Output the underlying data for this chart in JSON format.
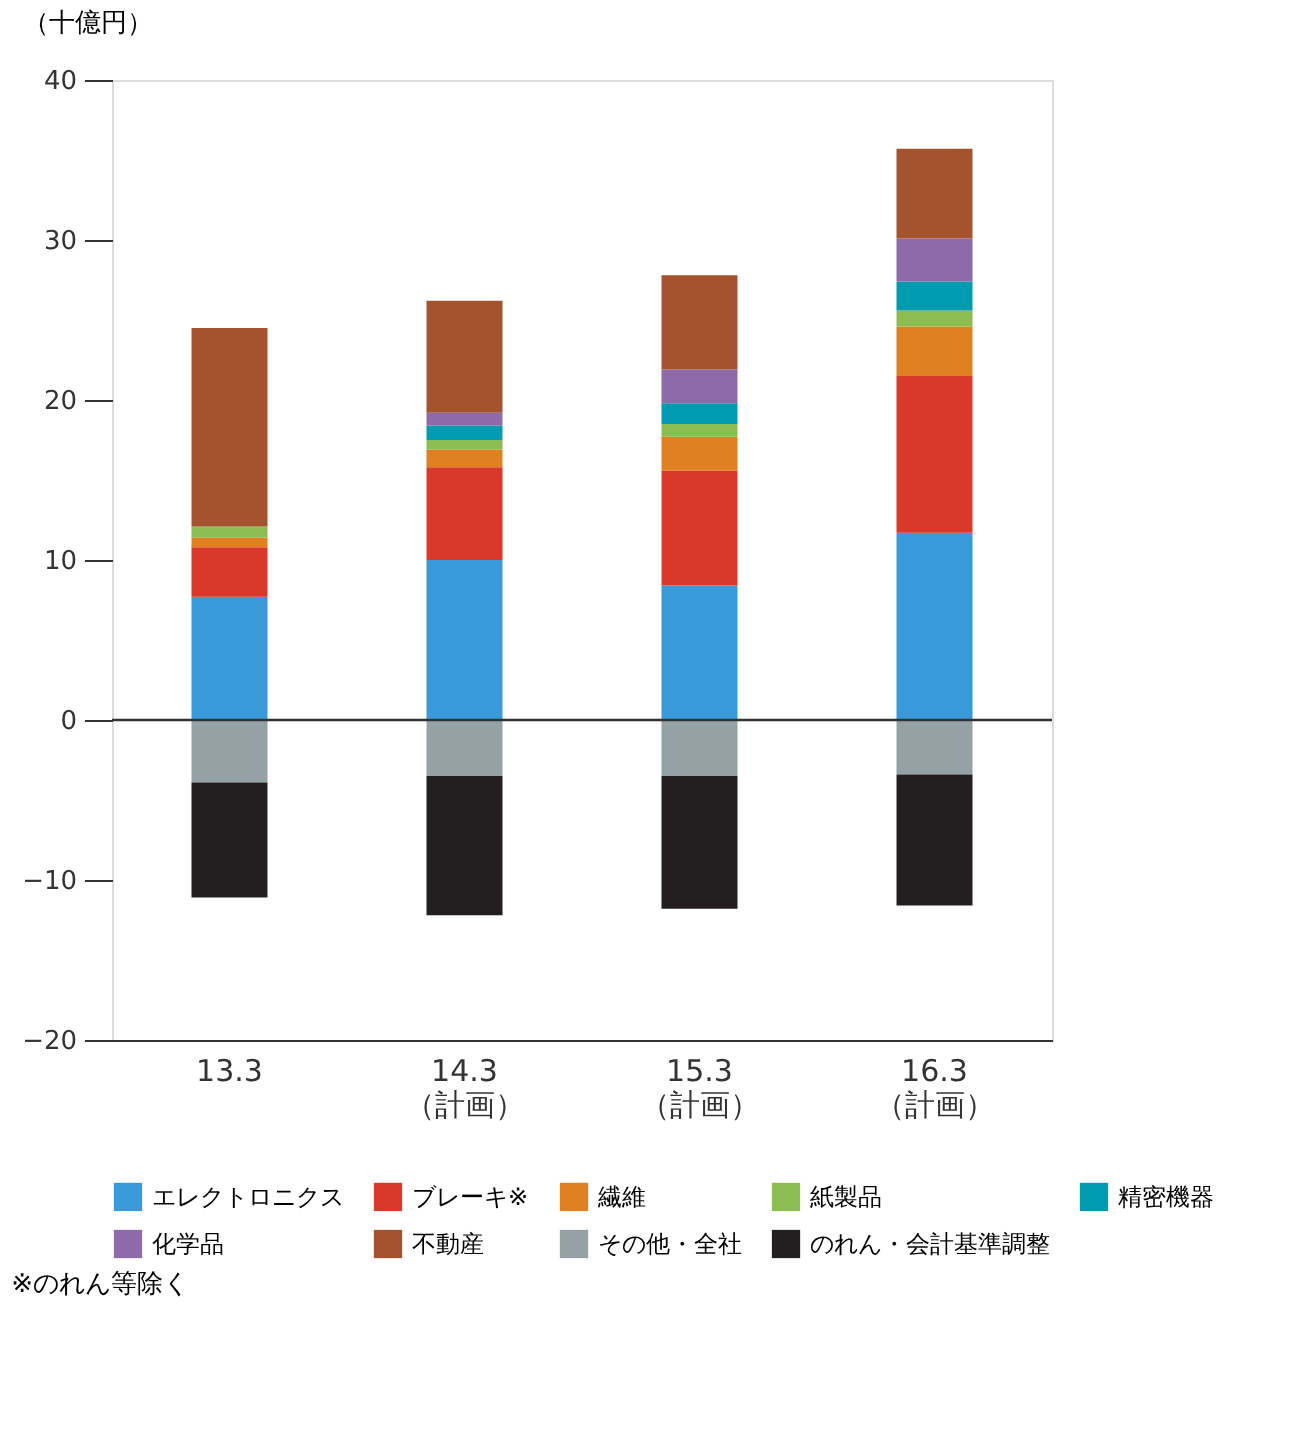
{
  "chart_data": {
    "type": "bar",
    "stacked": true,
    "ylabel": "（十億円）",
    "categories": [
      "13.3",
      "14.3\n（計画）",
      "15.3\n（計画）",
      "16.3\n（計画）"
    ],
    "series": [
      {
        "name": "エレクトロニクス",
        "color": "#3a9ad9",
        "values": [
          7.7,
          10.0,
          8.4,
          11.7
        ]
      },
      {
        "name": "ブレーキ※",
        "color": "#d9382a",
        "values": [
          3.1,
          5.8,
          7.2,
          9.8
        ]
      },
      {
        "name": "繊維",
        "color": "#e08020",
        "values": [
          0.6,
          1.1,
          2.1,
          3.1
        ]
      },
      {
        "name": "紙製品",
        "color": "#8cbd50",
        "values": [
          0.7,
          0.6,
          0.8,
          1.0
        ]
      },
      {
        "name": "精密機器",
        "color": "#009bb0",
        "values": [
          null,
          0.9,
          1.3,
          1.8
        ]
      },
      {
        "name": "化学品",
        "color": "#8e6aaa",
        "values": [
          null,
          0.8,
          2.1,
          2.7
        ]
      },
      {
        "name": "不動産",
        "color": "#a5532f",
        "values": [
          12.4,
          7.0,
          5.9,
          5.6
        ]
      },
      {
        "name": "その他・全社",
        "color": "#95a2a5",
        "values": [
          -3.9,
          -3.5,
          -3.5,
          -3.4
        ]
      },
      {
        "name": "のれん・会計基準調整",
        "color": "#231f20",
        "values": [
          -7.2,
          -8.7,
          -8.3,
          -8.2
        ]
      }
    ],
    "ylim": [
      -20,
      40
    ],
    "yticks": [
      -20,
      -10,
      0,
      10,
      20,
      30,
      40
    ],
    "ref_lines": [
      {
        "axis": "y",
        "value": 0,
        "label": null
      }
    ],
    "grid": false,
    "legend": "bottom",
    "annotations": [
      "※のれん等除く"
    ]
  }
}
